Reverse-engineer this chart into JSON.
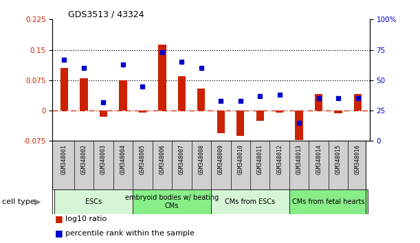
{
  "title": "GDS3513 / 43324",
  "samples": [
    "GSM348001",
    "GSM348002",
    "GSM348003",
    "GSM348004",
    "GSM348005",
    "GSM348006",
    "GSM348007",
    "GSM348008",
    "GSM348009",
    "GSM348010",
    "GSM348011",
    "GSM348012",
    "GSM348013",
    "GSM348014",
    "GSM348015",
    "GSM348016"
  ],
  "log10_ratio": [
    0.105,
    0.08,
    -0.015,
    0.075,
    -0.005,
    0.162,
    0.085,
    0.055,
    -0.055,
    -0.062,
    -0.025,
    -0.005,
    -0.072,
    0.04,
    -0.007,
    0.04
  ],
  "percentile_rank": [
    67,
    60,
    32,
    63,
    45,
    73,
    65,
    60,
    33,
    33,
    37,
    38,
    15,
    35,
    35,
    35
  ],
  "ylim_left": [
    -0.075,
    0.225
  ],
  "ylim_right": [
    0,
    100
  ],
  "yticks_left": [
    -0.075,
    0,
    0.075,
    0.15,
    0.225
  ],
  "yticks_right": [
    0,
    25,
    50,
    75,
    100
  ],
  "hlines": [
    0.075,
    0.15
  ],
  "bar_color": "#cc2200",
  "dot_color": "#0000cc",
  "zero_line_color": "#cc2200",
  "cell_type_groups": [
    {
      "label": "ESCs",
      "start": 0,
      "end": 3,
      "color": "#d6f5d6"
    },
    {
      "label": "embryoid bodies w/ beating\nCMs",
      "start": 4,
      "end": 7,
      "color": "#88ee88"
    },
    {
      "label": "CMs from ESCs",
      "start": 8,
      "end": 11,
      "color": "#d6f5d6"
    },
    {
      "label": "CMs from fetal hearts",
      "start": 12,
      "end": 15,
      "color": "#88ee88"
    }
  ],
  "cell_type_label": "cell type",
  "bg_color": "#ffffff",
  "tick_label_color_left": "#cc2200",
  "tick_label_color_right": "#0000cc",
  "sample_box_color": "#d0d0d0",
  "bar_width": 0.4
}
